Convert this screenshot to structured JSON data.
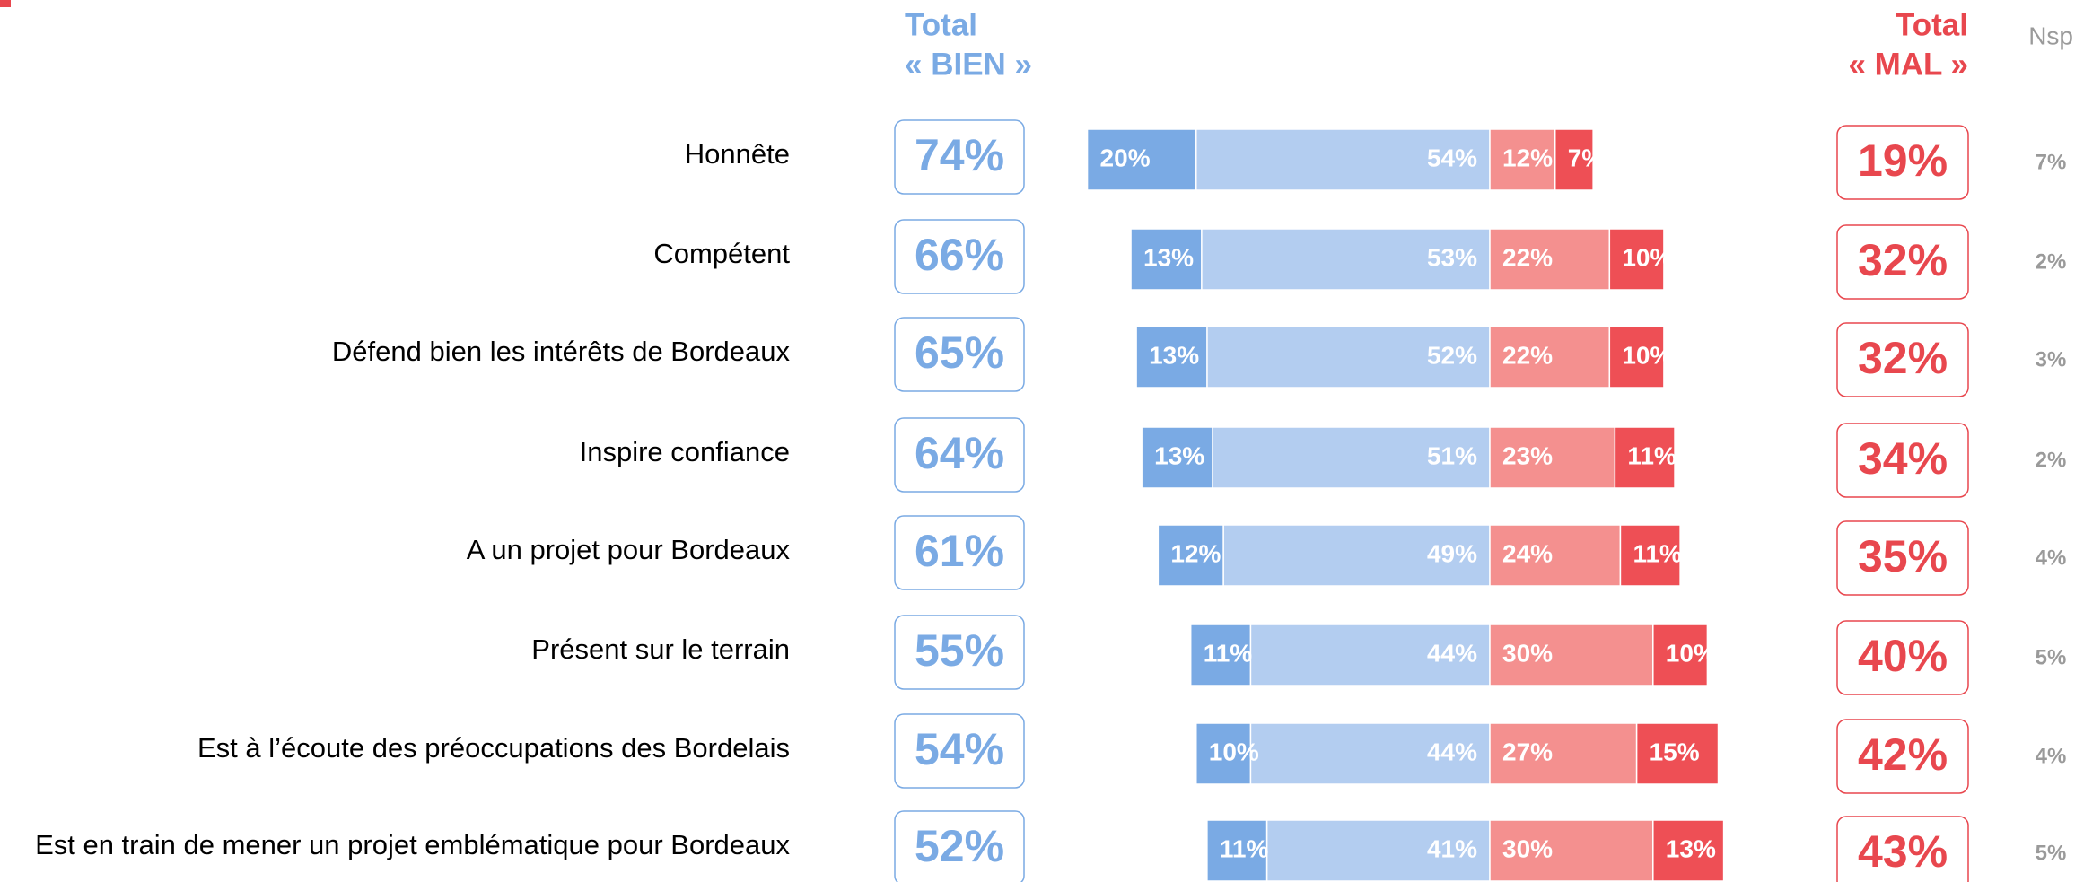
{
  "chart_data": {
    "type": "diverging-bar",
    "headers": {
      "bien": [
        "Total",
        "« BIEN »"
      ],
      "mal": [
        "Total",
        "« MAL »"
      ],
      "nsp": "Nsp"
    },
    "categories": [
      "Honnête",
      "Compétent",
      "Défend bien les intérêts de Bordeaux",
      "Inspire confiance",
      "A un projet pour Bordeaux",
      "Présent sur le terrain",
      "Est à l’écoute des préoccupations des Bordelais",
      "Est en train de mener un projet emblématique pour Bordeaux"
    ],
    "series": [
      {
        "color": "#7aaae4",
        "side": "positive",
        "values": [
          20,
          13,
          13,
          13,
          12,
          11,
          10,
          11
        ],
        "value_labels": [
          "20%",
          "13%",
          "13%",
          "13%",
          "12%",
          "11%",
          "10%",
          "11%"
        ]
      },
      {
        "color": "#b3cdf0",
        "side": "positive",
        "values": [
          54,
          53,
          52,
          51,
          49,
          44,
          44,
          41
        ],
        "value_labels": [
          "54%",
          "53%",
          "52%",
          "51%",
          "49%",
          "44%",
          "44%",
          "41%"
        ]
      },
      {
        "color": "#f4908f",
        "side": "negative",
        "values": [
          12,
          22,
          22,
          23,
          24,
          30,
          27,
          30
        ],
        "value_labels": [
          "12%",
          "22%",
          "22%",
          "23%",
          "24%",
          "30%",
          "27%",
          "30%"
        ]
      },
      {
        "color": "#ee4f55",
        "side": "negative",
        "values": [
          7,
          10,
          10,
          11,
          11,
          10,
          15,
          13
        ],
        "value_labels": [
          "7%",
          "10%",
          "10%",
          "11%",
          "11%",
          "10%",
          "15%",
          "13%"
        ]
      }
    ],
    "total_bien": {
      "color": "#7aaae4",
      "values": [
        74,
        66,
        65,
        64,
        61,
        55,
        54,
        52
      ],
      "value_labels": [
        "74%",
        "66%",
        "65%",
        "64%",
        "61%",
        "55%",
        "54%",
        "52%"
      ]
    },
    "total_mal": {
      "color": "#e8474e",
      "values": [
        19,
        32,
        32,
        34,
        35,
        40,
        42,
        43
      ],
      "value_labels": [
        "19%",
        "32%",
        "32%",
        "34%",
        "35%",
        "40%",
        "42%",
        "43%"
      ]
    },
    "nsp": {
      "color": "#9a9a9a",
      "values": [
        7,
        2,
        3,
        2,
        4,
        5,
        4,
        5
      ],
      "value_labels": [
        "7%",
        "2%",
        "3%",
        "2%",
        "4%",
        "5%",
        "4%",
        "5%"
      ]
    }
  }
}
